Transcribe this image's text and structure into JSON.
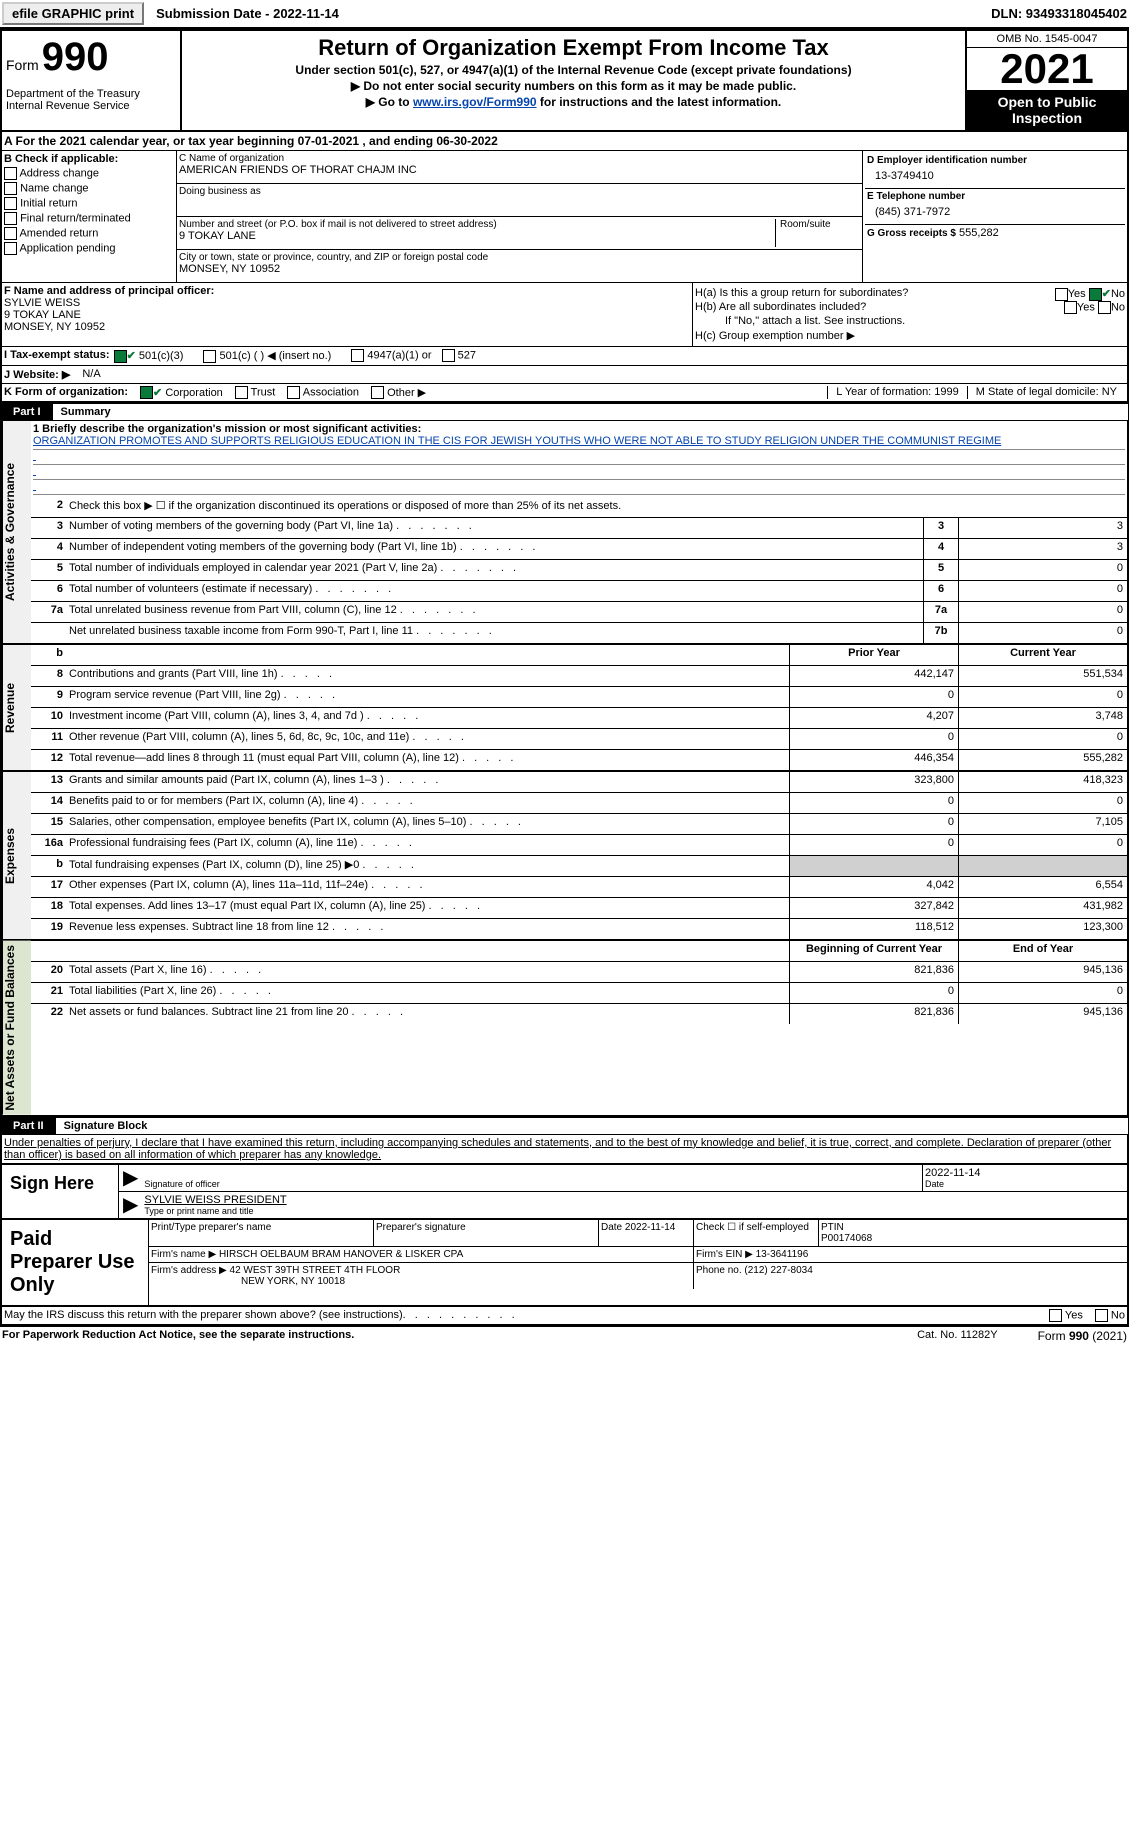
{
  "topbar": {
    "efile": "efile GRAPHIC print",
    "submission": "Submission Date - 2022-11-14",
    "dln": "DLN: 93493318045402"
  },
  "header": {
    "form_prefix": "Form",
    "form_no": "990",
    "dept": "Department of the Treasury\nInternal Revenue Service",
    "title": "Return of Organization Exempt From Income Tax",
    "sub1": "Under section 501(c), 527, or 4947(a)(1) of the Internal Revenue Code (except private foundations)",
    "sub2": "▶ Do not enter social security numbers on this form as it may be made public.",
    "sub3_pre": "▶ Go to ",
    "sub3_link": "www.irs.gov/Form990",
    "sub3_post": " for instructions and the latest information.",
    "omb": "OMB No. 1545-0047",
    "year": "2021",
    "otp": "Open to Public Inspection"
  },
  "rowA": {
    "text": "A  For the 2021 calendar year, or tax year beginning 07-01-2021    , and ending 06-30-2022"
  },
  "colB": {
    "hdr": "B Check if applicable:",
    "items": [
      "Address change",
      "Name change",
      "Initial return",
      "Final return/terminated",
      "Amended return",
      "Application pending"
    ]
  },
  "colC": {
    "name_lbl": "C Name of organization",
    "name": "AMERICAN FRIENDS OF THORAT CHAJM INC",
    "dba_lbl": "Doing business as",
    "dba": "",
    "addr_lbl": "Number and street (or P.O. box if mail is not delivered to street address)",
    "room_lbl": "Room/suite",
    "addr": "9 TOKAY LANE",
    "city_lbl": "City or town, state or province, country, and ZIP or foreign postal code",
    "city": "MONSEY, NY  10952"
  },
  "colD": {
    "ein_lbl": "D Employer identification number",
    "ein": "13-3749410",
    "tel_lbl": "E Telephone number",
    "tel": "(845) 371-7972",
    "gross_lbl": "G Gross receipts $",
    "gross": "555,282"
  },
  "sectionF": {
    "lbl": "F  Name and address of principal officer:",
    "name": "SYLVIE WEISS",
    "addr1": "9 TOKAY LANE",
    "addr2": "MONSEY, NY  10952"
  },
  "sectionH": {
    "ha": "H(a)  Is this a group return for subordinates?",
    "ha_no": "No",
    "hb": "H(b)  Are all subordinates included?",
    "hb_note": "If \"No,\" attach a list. See instructions.",
    "hc": "H(c)  Group exemption number ▶"
  },
  "rowI": {
    "lbl": "I    Tax-exempt status:",
    "c3": "501(c)(3)",
    "c": "501(c) (  ) ◀ (insert no.)",
    "a1": "4947(a)(1) or",
    "s527": "527"
  },
  "rowJ": {
    "lbl": "J   Website: ▶",
    "val": "N/A"
  },
  "rowK": {
    "lbl": "K Form of organization:",
    "corp": "Corporation",
    "trust": "Trust",
    "assoc": "Association",
    "other": "Other ▶",
    "L": "L Year of formation: 1999",
    "M": "M State of legal domicile: NY"
  },
  "part1": {
    "tag": "Part I",
    "title": "Summary"
  },
  "summary": {
    "tabs": [
      "Activities & Governance",
      "Revenue",
      "Expenses",
      "Net Assets or Fund Balances"
    ],
    "mission_lbl": "1   Briefly describe the organization's mission or most significant activities:",
    "mission": "ORGANIZATION PROMOTES AND SUPPORTS RELIGIOUS EDUCATION IN THE CIS FOR JEWISH YOUTHS WHO WERE NOT ABLE TO STUDY RELIGION UNDER THE COMMUNIST REGIME",
    "line2": "Check this box ▶ ☐  if the organization discontinued its operations or disposed of more than 25% of its net assets.",
    "rows_gov": [
      {
        "n": "3",
        "d": "Number of voting members of the governing body (Part VI, line 1a)",
        "box": "3",
        "v": "3"
      },
      {
        "n": "4",
        "d": "Number of independent voting members of the governing body (Part VI, line 1b)",
        "box": "4",
        "v": "3"
      },
      {
        "n": "5",
        "d": "Total number of individuals employed in calendar year 2021 (Part V, line 2a)",
        "box": "5",
        "v": "0"
      },
      {
        "n": "6",
        "d": "Total number of volunteers (estimate if necessary)",
        "box": "6",
        "v": "0"
      },
      {
        "n": "7a",
        "d": "Total unrelated business revenue from Part VIII, column (C), line 12",
        "box": "7a",
        "v": "0"
      },
      {
        "n": "",
        "d": "Net unrelated business taxable income from Form 990-T, Part I, line 11",
        "box": "7b",
        "v": "0"
      }
    ],
    "py": "Prior Year",
    "cy": "Current Year",
    "rows_rev": [
      {
        "n": "8",
        "d": "Contributions and grants (Part VIII, line 1h)",
        "py": "442,147",
        "cy": "551,534"
      },
      {
        "n": "9",
        "d": "Program service revenue (Part VIII, line 2g)",
        "py": "0",
        "cy": "0"
      },
      {
        "n": "10",
        "d": "Investment income (Part VIII, column (A), lines 3, 4, and 7d )",
        "py": "4,207",
        "cy": "3,748"
      },
      {
        "n": "11",
        "d": "Other revenue (Part VIII, column (A), lines 5, 6d, 8c, 9c, 10c, and 11e)",
        "py": "0",
        "cy": "0"
      },
      {
        "n": "12",
        "d": "Total revenue—add lines 8 through 11 (must equal Part VIII, column (A), line 12)",
        "py": "446,354",
        "cy": "555,282"
      }
    ],
    "rows_exp": [
      {
        "n": "13",
        "d": "Grants and similar amounts paid (Part IX, column (A), lines 1–3 )",
        "py": "323,800",
        "cy": "418,323"
      },
      {
        "n": "14",
        "d": "Benefits paid to or for members (Part IX, column (A), line 4)",
        "py": "0",
        "cy": "0"
      },
      {
        "n": "15",
        "d": "Salaries, other compensation, employee benefits (Part IX, column (A), lines 5–10)",
        "py": "0",
        "cy": "7,105"
      },
      {
        "n": "16a",
        "d": "Professional fundraising fees (Part IX, column (A), line 11e)",
        "py": "0",
        "cy": "0"
      },
      {
        "n": "b",
        "d": "Total fundraising expenses (Part IX, column (D), line 25) ▶0",
        "py": "",
        "cy": "",
        "shaded": true
      },
      {
        "n": "17",
        "d": "Other expenses (Part IX, column (A), lines 11a–11d, 11f–24e)",
        "py": "4,042",
        "cy": "6,554"
      },
      {
        "n": "18",
        "d": "Total expenses. Add lines 13–17 (must equal Part IX, column (A), line 25)",
        "py": "327,842",
        "cy": "431,982"
      },
      {
        "n": "19",
        "d": "Revenue less expenses. Subtract line 18 from line 12",
        "py": "118,512",
        "cy": "123,300"
      }
    ],
    "bcy": "Beginning of Current Year",
    "eoy": "End of Year",
    "rows_na": [
      {
        "n": "20",
        "d": "Total assets (Part X, line 16)",
        "py": "821,836",
        "cy": "945,136"
      },
      {
        "n": "21",
        "d": "Total liabilities (Part X, line 26)",
        "py": "0",
        "cy": "0"
      },
      {
        "n": "22",
        "d": "Net assets or fund balances. Subtract line 21 from line 20",
        "py": "821,836",
        "cy": "945,136"
      }
    ]
  },
  "part2": {
    "tag": "Part II",
    "title": "Signature Block"
  },
  "decl": "Under penalties of perjury, I declare that I have examined this return, including accompanying schedules and statements, and to the best of my knowledge and belief, it is true, correct, and complete. Declaration of preparer (other than officer) is based on all information of which preparer has any knowledge.",
  "sign": {
    "left": "Sign Here",
    "sig_lbl": "Signature of officer",
    "date": "2022-11-14",
    "date_lbl": "Date",
    "name": "SYLVIE WEISS PRESIDENT",
    "name_lbl": "Type or print name and title"
  },
  "prep": {
    "left": "Paid Preparer Use Only",
    "r1": {
      "name_lbl": "Print/Type preparer's name",
      "sig_lbl": "Preparer's signature",
      "date_lbl": "Date",
      "date": "2022-11-14",
      "chk_lbl": "Check ☐ if self-employed",
      "ptin_lbl": "PTIN",
      "ptin": "P00174068"
    },
    "r2": {
      "firm_lbl": "Firm's name    ▶",
      "firm": "HIRSCH OELBAUM BRAM HANOVER & LISKER CPA",
      "ein_lbl": "Firm's EIN ▶",
      "ein": "13-3641196"
    },
    "r3": {
      "addr_lbl": "Firm's address ▶",
      "addr1": "42 WEST 39TH STREET 4TH FLOOR",
      "addr2": "NEW YORK, NY  10018",
      "ph_lbl": "Phone no.",
      "ph": "(212) 227-8034"
    }
  },
  "discuss": "May the IRS discuss this return with the preparer shown above? (see instructions)",
  "footer": {
    "left": "For Paperwork Reduction Act Notice, see the separate instructions.",
    "cat": "Cat. No. 11282Y",
    "form": "Form 990 (2021)"
  }
}
